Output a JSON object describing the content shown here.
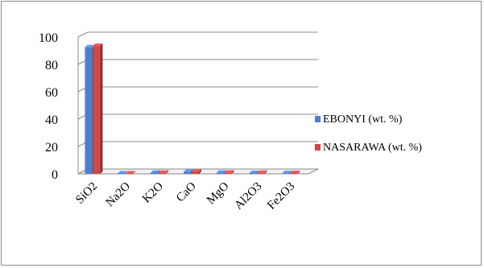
{
  "chart_data": {
    "type": "bar",
    "categories": [
      "SiO2",
      "Na2O",
      "K2O",
      "CaO",
      "MgO",
      "Al2O3",
      "Fe2O3"
    ],
    "series": [
      {
        "name": "EBONYI   (wt. %)",
        "values": [
          92.5,
          0.3,
          0.9,
          1.4,
          0.8,
          0.6,
          0.5
        ],
        "color": "#4f7fc8"
      },
      {
        "name": "NASARAWA (wt. %)",
        "values": [
          93.5,
          0.3,
          0.8,
          1.7,
          0.8,
          0.7,
          0.6
        ],
        "color": "#d04747"
      }
    ],
    "yticks": [
      0,
      20,
      40,
      60,
      80,
      100
    ],
    "ylim": [
      0,
      100
    ],
    "grid": true,
    "legend": "right",
    "title": "",
    "xlabel": "",
    "ylabel": ""
  }
}
